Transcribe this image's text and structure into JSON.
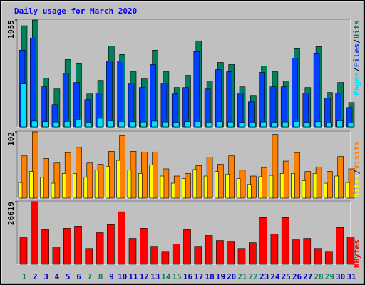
{
  "chart_data": [
    {
      "type": "bar",
      "title": "Daily usage for March 2020",
      "title_color": "#0000ff",
      "ylim": [
        0,
        1955
      ],
      "yticks": [
        1955
      ],
      "series": [
        {
          "name": "Hits",
          "color": "#00805c",
          "values": [
            1850,
            1955,
            890,
            695,
            1233,
            1155,
            603,
            852,
            1482,
            1325,
            1010,
            879,
            1404,
            1010,
            721,
            944,
            1574,
            839,
            1180,
            1141,
            734,
            564,
            1115,
            1010,
            839,
            1430,
            721,
            1469,
            630,
            813,
            446
          ]
        },
        {
          "name": "Files",
          "color": "#0040ff",
          "values": [
            1404,
            1627,
            734,
            407,
            984,
            813,
            498,
            617,
            1207,
            1207,
            800,
            721,
            1141,
            800,
            603,
            721,
            1377,
            695,
            1049,
            1010,
            617,
            459,
            997,
            734,
            734,
            1259,
            617,
            1338,
            525,
            617,
            354
          ]
        },
        {
          "name": "Pages",
          "color": "#00e0ff",
          "values": [
            787,
            105,
            95,
            90,
            100,
            130,
            85,
            157,
            110,
            100,
            95,
            90,
            105,
            90,
            80,
            95,
            100,
            85,
            95,
            90,
            80,
            75,
            90,
            85,
            90,
            100,
            80,
            95,
            75,
            110,
            70
          ]
        }
      ]
    },
    {
      "type": "bar",
      "ylim": [
        0,
        102
      ],
      "yticks": [
        102
      ],
      "series": [
        {
          "name": "Visits",
          "color": "#ff8000",
          "values": [
            65,
            102,
            61,
            54,
            70,
            78,
            54,
            52,
            72,
            96,
            72,
            71,
            71,
            45,
            34,
            38,
            50,
            63,
            52,
            65,
            43,
            34,
            47,
            98,
            57,
            70,
            41,
            48,
            41,
            64,
            45
          ]
        },
        {
          "name": "Sites",
          "color": "#ffff00",
          "values": [
            24,
            41,
            32,
            23,
            38,
            38,
            32,
            43,
            49,
            58,
            43,
            38,
            51,
            34,
            23,
            30,
            44,
            34,
            41,
            37,
            30,
            21,
            33,
            35,
            38,
            38,
            27,
            38,
            23,
            34,
            24
          ]
        }
      ]
    },
    {
      "type": "bar",
      "ylim": [
        0,
        26619
      ],
      "yticks": [
        26619
      ],
      "series": [
        {
          "name": "KBytes",
          "color": "#ff0000",
          "values": [
            11320,
            26619,
            14690,
            7340,
            15300,
            16220,
            6730,
            13460,
            16830,
            22340,
            11020,
            15300,
            7650,
            5510,
            8570,
            14690,
            7650,
            12240,
            10100,
            9790,
            6730,
            9180,
            19890,
            12850,
            19890,
            10400,
            11020,
            6730,
            5510,
            15610,
            11630
          ]
        }
      ],
      "categories": [
        "1",
        "2",
        "3",
        "4",
        "5",
        "6",
        "7",
        "8",
        "9",
        "10",
        "11",
        "12",
        "13",
        "14",
        "15",
        "16",
        "17",
        "18",
        "19",
        "20",
        "21",
        "22",
        "23",
        "24",
        "25",
        "26",
        "27",
        "28",
        "29",
        "30",
        "31"
      ],
      "category_colors": [
        "#00805c",
        "#0000c0",
        "#0000c0",
        "#0000c0",
        "#0000c0",
        "#0000c0",
        "#00805c",
        "#00805c",
        "#0000c0",
        "#0000c0",
        "#0000c0",
        "#0000c0",
        "#0000c0",
        "#00805c",
        "#00805c",
        "#0000c0",
        "#0000c0",
        "#0000c0",
        "#0000c0",
        "#0000c0",
        "#00805c",
        "#00805c",
        "#0000c0",
        "#0000c0",
        "#0000c0",
        "#0000c0",
        "#0000c0",
        "#00805c",
        "#00805c",
        "#0000c0",
        "#0000c0"
      ]
    }
  ]
}
